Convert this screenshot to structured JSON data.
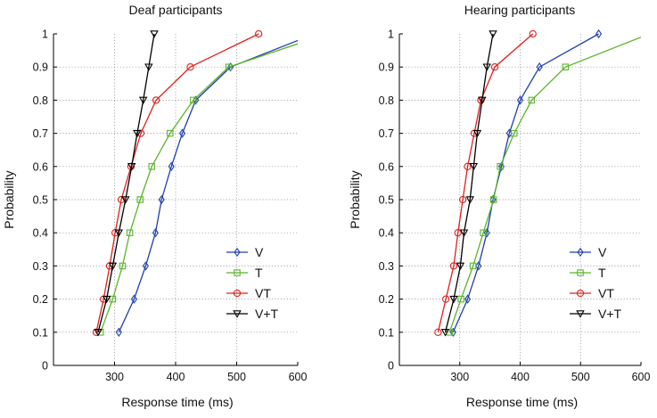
{
  "chart_data": [
    {
      "type": "line",
      "title": "Deaf participants",
      "xlabel": "Response time (ms)",
      "ylabel": "Probability",
      "xlim": [
        200,
        600
      ],
      "ylim": [
        0,
        1
      ],
      "xticks": [
        "300",
        "400",
        "500",
        "600"
      ],
      "yticks": [
        "0",
        "0.1",
        "0.2",
        "0.3",
        "0.4",
        "0.5",
        "0.6",
        "0.7",
        "0.8",
        "0.9",
        "1"
      ],
      "grid": true,
      "legend_position": "bottom-right",
      "series": [
        {
          "name": "V",
          "color": "#1f3fb0",
          "marker": "diamond",
          "x": [
            307,
            332,
            351,
            367,
            377,
            393,
            411,
            433,
            490,
            600
          ],
          "y": [
            0.1,
            0.2,
            0.3,
            0.4,
            0.5,
            0.6,
            0.7,
            0.8,
            0.9,
            0.98
          ]
        },
        {
          "name": "T",
          "color": "#5ab52a",
          "marker": "square",
          "x": [
            277,
            297,
            313,
            325,
            342,
            361,
            391,
            429,
            487,
            600
          ],
          "y": [
            0.1,
            0.2,
            0.3,
            0.4,
            0.5,
            0.6,
            0.7,
            0.8,
            0.9,
            0.97
          ]
        },
        {
          "name": "VT",
          "color": "#e0201a",
          "marker": "circle",
          "x": [
            270,
            282,
            292,
            301,
            311,
            327,
            343,
            368,
            424,
            536
          ],
          "y": [
            0.1,
            0.2,
            0.3,
            0.4,
            0.5,
            0.6,
            0.7,
            0.8,
            0.9,
            1.0
          ]
        },
        {
          "name": "V+T",
          "color": "#000000",
          "marker": "triangle-down",
          "x": [
            273,
            287,
            297,
            307,
            318,
            328,
            337,
            347,
            356,
            365
          ],
          "y": [
            0.1,
            0.2,
            0.3,
            0.4,
            0.5,
            0.6,
            0.7,
            0.8,
            0.9,
            1.0
          ]
        }
      ]
    },
    {
      "type": "line",
      "title": "Hearing participants",
      "xlabel": "Response time (ms)",
      "ylabel": "Probability",
      "xlim": [
        200,
        600
      ],
      "ylim": [
        0,
        1
      ],
      "xticks": [
        "300",
        "400",
        "500",
        "600"
      ],
      "yticks": [
        "0",
        "0.1",
        "0.2",
        "0.3",
        "0.4",
        "0.5",
        "0.6",
        "0.7",
        "0.8",
        "0.9",
        "1"
      ],
      "grid": true,
      "legend_position": "bottom-right",
      "series": [
        {
          "name": "V",
          "color": "#1f3fb0",
          "marker": "diamond",
          "x": [
            289,
            313,
            331,
            345,
            355,
            369,
            382,
            400,
            432,
            530
          ],
          "y": [
            0.1,
            0.2,
            0.3,
            0.4,
            0.5,
            0.6,
            0.7,
            0.8,
            0.9,
            1.0
          ]
        },
        {
          "name": "T",
          "color": "#5ab52a",
          "marker": "square",
          "x": [
            283,
            302,
            322,
            339,
            356,
            367,
            390,
            419,
            475,
            600
          ],
          "y": [
            0.1,
            0.2,
            0.3,
            0.4,
            0.5,
            0.6,
            0.7,
            0.8,
            0.9,
            0.99
          ]
        },
        {
          "name": "VT",
          "color": "#e0201a",
          "marker": "circle",
          "x": [
            264,
            277,
            290,
            297,
            305,
            313,
            324,
            335,
            358,
            421
          ],
          "y": [
            0.1,
            0.2,
            0.3,
            0.4,
            0.5,
            0.6,
            0.7,
            0.8,
            0.9,
            1.0
          ]
        },
        {
          "name": "V+T",
          "color": "#000000",
          "marker": "triangle-down",
          "x": [
            276,
            290,
            301,
            307,
            317,
            323,
            329,
            337,
            345,
            355
          ],
          "y": [
            0.1,
            0.2,
            0.3,
            0.4,
            0.5,
            0.6,
            0.7,
            0.8,
            0.9,
            1.0
          ]
        }
      ]
    }
  ]
}
